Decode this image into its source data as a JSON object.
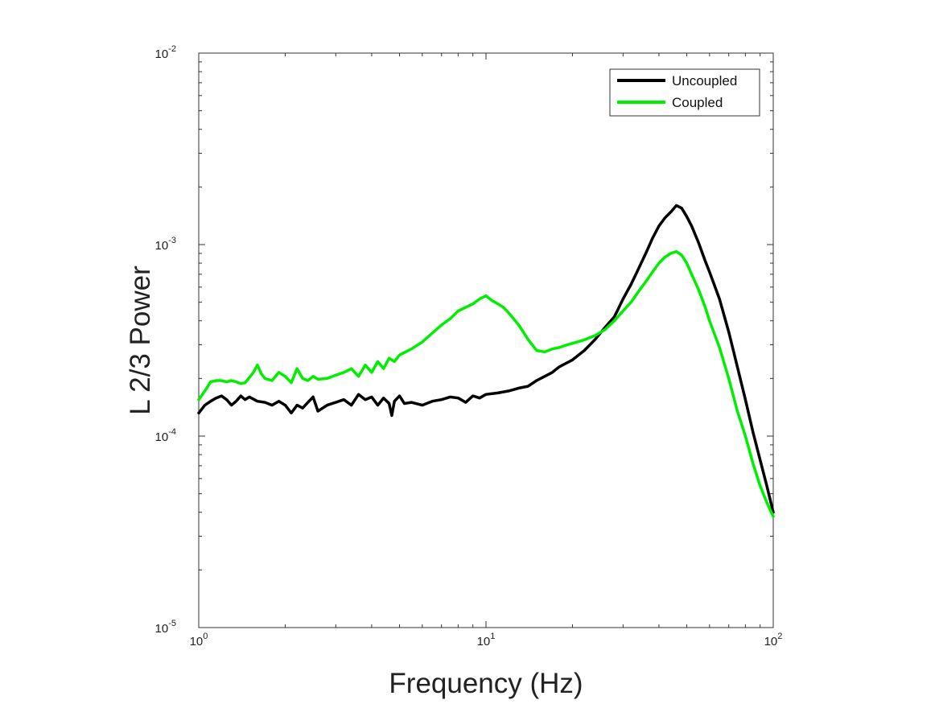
{
  "chart_data": {
    "type": "line",
    "title": "",
    "xlabel": "Frequency (Hz)",
    "ylabel": "L 2/3 Power",
    "xscale": "log",
    "yscale": "log",
    "xlim": [
      1,
      100
    ],
    "ylim": [
      1e-05,
      0.01
    ],
    "grid": false,
    "legend_position": "top-right",
    "x_ticks": [
      {
        "value": 1,
        "base": "10",
        "exp": "0"
      },
      {
        "value": 10,
        "base": "10",
        "exp": "1"
      },
      {
        "value": 100,
        "base": "10",
        "exp": "2"
      }
    ],
    "y_ticks": [
      {
        "value": 1e-05,
        "base": "10",
        "exp": "-5"
      },
      {
        "value": 0.0001,
        "base": "10",
        "exp": "-4"
      },
      {
        "value": 0.001,
        "base": "10",
        "exp": "-3"
      },
      {
        "value": 0.01,
        "base": "10",
        "exp": "-2"
      }
    ],
    "series": [
      {
        "name": "Uncoupled",
        "color": "#000000",
        "x": [
          1,
          1.05,
          1.1,
          1.15,
          1.2,
          1.25,
          1.3,
          1.35,
          1.4,
          1.45,
          1.5,
          1.6,
          1.7,
          1.8,
          1.9,
          2,
          2.1,
          2.2,
          2.3,
          2.4,
          2.5,
          2.6,
          2.8,
          3,
          3.2,
          3.4,
          3.6,
          3.8,
          4,
          4.2,
          4.4,
          4.6,
          4.7,
          4.8,
          5,
          5.2,
          5.5,
          6,
          6.5,
          7,
          7.5,
          8,
          8.5,
          9,
          9.5,
          10,
          11,
          12,
          13,
          14,
          15,
          16,
          17,
          18,
          19,
          20,
          22,
          24,
          26,
          28,
          30,
          32,
          34,
          36,
          38,
          40,
          42,
          44,
          46,
          48,
          50,
          52,
          55,
          58,
          60,
          65,
          70,
          75,
          80,
          85,
          90,
          95,
          100
        ],
        "y": [
          0.000132,
          0.000145,
          0.000152,
          0.000158,
          0.000162,
          0.000155,
          0.000145,
          0.000152,
          0.000162,
          0.000155,
          0.00016,
          0.000152,
          0.00015,
          0.000145,
          0.000152,
          0.000145,
          0.000132,
          0.000145,
          0.00014,
          0.00015,
          0.00016,
          0.000135,
          0.000145,
          0.00015,
          0.000155,
          0.000145,
          0.000165,
          0.000155,
          0.00016,
          0.000145,
          0.000158,
          0.000148,
          0.000128,
          0.000152,
          0.000162,
          0.000148,
          0.00015,
          0.000145,
          0.000152,
          0.000155,
          0.00016,
          0.000158,
          0.00015,
          0.000162,
          0.000158,
          0.000165,
          0.000168,
          0.000172,
          0.000178,
          0.000182,
          0.000195,
          0.000205,
          0.000215,
          0.00023,
          0.00024,
          0.00025,
          0.00028,
          0.00032,
          0.00037,
          0.00042,
          0.00052,
          0.00062,
          0.00075,
          0.0009,
          0.00108,
          0.00125,
          0.00138,
          0.00148,
          0.0016,
          0.00155,
          0.0014,
          0.00125,
          0.00102,
          0.00082,
          0.00072,
          0.00052,
          0.00035,
          0.00023,
          0.000155,
          0.000105,
          7.5e-05,
          5.5e-05,
          4e-05
        ]
      },
      {
        "name": "Coupled",
        "color": "#00ee00",
        "x": [
          1,
          1.05,
          1.1,
          1.15,
          1.2,
          1.25,
          1.3,
          1.35,
          1.4,
          1.45,
          1.5,
          1.55,
          1.6,
          1.65,
          1.7,
          1.8,
          1.9,
          2,
          2.1,
          2.2,
          2.3,
          2.4,
          2.5,
          2.6,
          2.8,
          3,
          3.2,
          3.4,
          3.6,
          3.8,
          4,
          4.2,
          4.4,
          4.6,
          4.8,
          5,
          5.5,
          6,
          6.5,
          7,
          7.5,
          8,
          8.5,
          9,
          9.5,
          10,
          10.5,
          11,
          11.5,
          12,
          13,
          14,
          15,
          16,
          17,
          18,
          19,
          20,
          22,
          24,
          26,
          28,
          30,
          32,
          34,
          36,
          38,
          40,
          42,
          44,
          46,
          48,
          50,
          52,
          55,
          58,
          60,
          65,
          70,
          75,
          80,
          85,
          90,
          95,
          100
        ],
        "y": [
          0.000155,
          0.000172,
          0.000192,
          0.000195,
          0.000195,
          0.000192,
          0.000195,
          0.000192,
          0.000188,
          0.00019,
          0.000202,
          0.000215,
          0.000235,
          0.000212,
          0.0002,
          0.000195,
          0.000215,
          0.000205,
          0.00019,
          0.000225,
          0.0002,
          0.000195,
          0.000205,
          0.000198,
          0.0002,
          0.000208,
          0.000215,
          0.000225,
          0.000205,
          0.000235,
          0.000215,
          0.000245,
          0.000225,
          0.000255,
          0.000245,
          0.000265,
          0.000285,
          0.00031,
          0.000345,
          0.00038,
          0.00041,
          0.00045,
          0.00047,
          0.00049,
          0.00052,
          0.00054,
          0.00051,
          0.00049,
          0.00047,
          0.00044,
          0.00038,
          0.00032,
          0.00028,
          0.000275,
          0.000285,
          0.00029,
          0.000298,
          0.000305,
          0.000318,
          0.000335,
          0.00036,
          0.0004,
          0.00045,
          0.0005,
          0.00057,
          0.00064,
          0.00072,
          0.0008,
          0.00086,
          0.0009,
          0.00092,
          0.00088,
          0.0008,
          0.0007,
          0.00058,
          0.00047,
          0.0004,
          0.00029,
          0.0002,
          0.000135,
          0.0001,
          7.2e-05,
          5.5e-05,
          4.5e-05,
          3.8e-05
        ]
      }
    ]
  }
}
